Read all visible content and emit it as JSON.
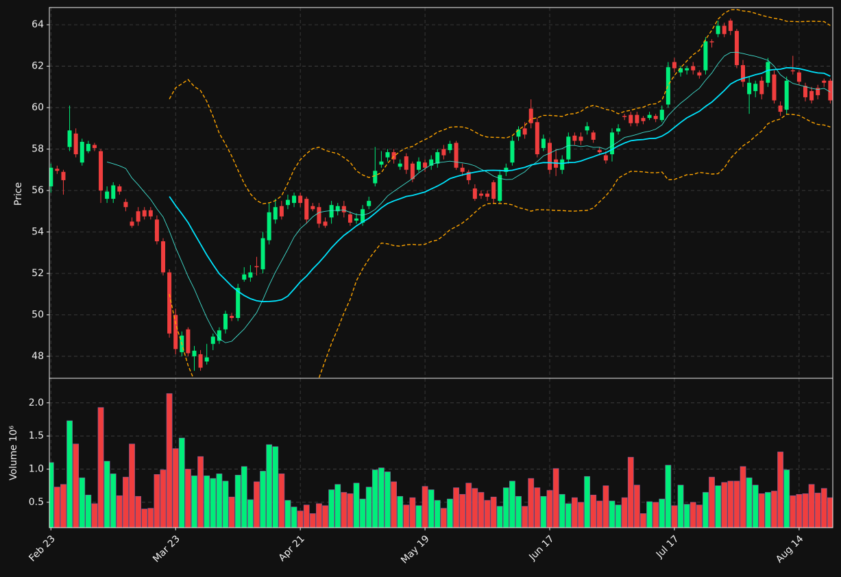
{
  "chart_data": {
    "type": "candlestick",
    "ylabel": "Price",
    "volume_ylabel": "Volume  10⁶",
    "up_color": "#00ee7a",
    "down_color": "#f03e3e",
    "mav": [
      10,
      20
    ],
    "mav_colors": [
      "#40e0d0",
      "#00e5ff"
    ],
    "bollinger": {
      "period": 20,
      "std": 2,
      "color": "#ffa500"
    },
    "grid": true,
    "xlim": [
      -0.25,
      125.4
    ],
    "xticks": [
      {
        "value": 0,
        "label": "Feb 23"
      },
      {
        "value": 20,
        "label": "Mar 23"
      },
      {
        "value": 40,
        "label": "Apr 21"
      },
      {
        "value": 60,
        "label": "May 19"
      },
      {
        "value": 80,
        "label": "Jun 17"
      },
      {
        "value": 100,
        "label": "Jul 17"
      },
      {
        "value": 120,
        "label": "Aug 14"
      }
    ],
    "ylim": [
      46.94,
      64.83
    ],
    "yticks": [
      48,
      50,
      52,
      54,
      56,
      58,
      60,
      62,
      64
    ],
    "volume_ylim": [
      0.117,
      2.37
    ],
    "volume_yticks": [
      0.5,
      {
        "value": 1,
        "label": "1.0"
      },
      1.5,
      {
        "value": 2,
        "label": "2.0"
      }
    ],
    "open": [
      56.2,
      57.05,
      56.9,
      58.1,
      58.75,
      57.35,
      57.9,
      58.2,
      57.9,
      55.6,
      55.6,
      56.2,
      55.45,
      54.5,
      55.0,
      55.05,
      55.05,
      54.6,
      53.55,
      52.05,
      50.0,
      48.2,
      49.3,
      48.0,
      48.1,
      47.75,
      48.6,
      48.75,
      49.3,
      49.95,
      49.85,
      51.7,
      51.8,
      52.35,
      52.2,
      53.6,
      54.6,
      55.25,
      55.3,
      55.4,
      55.75,
      55.6,
      55.25,
      55.2,
      54.5,
      54.7,
      55.0,
      55.25,
      54.85,
      54.55,
      54.45,
      55.25,
      56.35,
      57.25,
      57.6,
      57.85,
      57.15,
      57.65,
      57.3,
      57.0,
      57.35,
      57.2,
      57.3,
      58.0,
      57.95,
      58.3,
      57.1,
      56.9,
      56.1,
      55.85,
      55.85,
      56.4,
      55.5,
      56.9,
      57.35,
      58.6,
      59.0,
      59.95,
      59.3,
      58.05,
      58.3,
      57.5,
      57.0,
      57.5,
      58.65,
      58.6,
      58.9,
      58.8,
      57.95,
      57.7,
      57.75,
      58.85,
      59.6,
      59.65,
      59.65,
      59.5,
      59.5,
      59.6,
      59.4,
      60.15,
      62.2,
      61.7,
      61.8,
      62.0,
      61.7,
      61.8,
      63.2,
      63.55,
      63.95,
      64.2,
      63.7,
      62.05,
      60.65,
      60.8,
      61.3,
      61.2,
      61.6,
      60.1,
      59.9,
      61.8,
      61.7,
      61.05,
      60.8,
      60.95,
      61.3,
      61.3
    ],
    "high": [
      57.3,
      57.2,
      57.0,
      60.1,
      59.0,
      58.5,
      58.4,
      58.3,
      58.0,
      56.2,
      56.4,
      56.3,
      55.6,
      54.7,
      55.2,
      55.2,
      55.2,
      54.8,
      53.7,
      52.2,
      50.3,
      49.2,
      49.4,
      48.5,
      48.3,
      48.6,
      49.1,
      49.4,
      50.2,
      50.1,
      51.5,
      52.3,
      52.4,
      52.8,
      54.0,
      55.4,
      55.6,
      55.5,
      55.8,
      55.9,
      55.9,
      55.7,
      55.4,
      55.4,
      54.7,
      55.5,
      55.4,
      55.5,
      55.0,
      54.9,
      55.3,
      55.7,
      58.1,
      57.9,
      58.0,
      58.0,
      57.5,
      57.8,
      57.4,
      57.6,
      57.5,
      57.7,
      58.0,
      58.2,
      58.4,
      58.4,
      57.3,
      57.0,
      56.3,
      56.0,
      56.0,
      56.5,
      57.0,
      57.3,
      58.6,
      59.1,
      59.3,
      60.4,
      59.5,
      58.7,
      58.5,
      58.0,
      57.7,
      58.8,
      58.8,
      58.8,
      59.3,
      58.9,
      58.1,
      57.9,
      59.0,
      59.2,
      59.7,
      59.8,
      59.8,
      59.6,
      59.8,
      59.7,
      60.1,
      62.2,
      62.4,
      62.0,
      62.0,
      62.2,
      61.8,
      63.4,
      63.3,
      64.2,
      64.1,
      64.3,
      63.8,
      62.3,
      61.5,
      61.3,
      61.5,
      62.4,
      61.8,
      60.3,
      61.5,
      62.5,
      61.8,
      61.2,
      61.0,
      61.1,
      61.4,
      61.4
    ],
    "low": [
      55.9,
      56.8,
      55.8,
      57.9,
      57.6,
      57.2,
      57.8,
      57.9,
      55.4,
      55.4,
      55.4,
      55.8,
      55.0,
      54.2,
      54.3,
      54.6,
      54.6,
      53.4,
      51.9,
      48.9,
      48.1,
      48.0,
      48.0,
      47.3,
      47.3,
      47.6,
      48.3,
      48.6,
      49.1,
      49.7,
      49.7,
      51.6,
      51.6,
      51.9,
      52.0,
      53.4,
      54.4,
      54.6,
      55.1,
      55.2,
      55.2,
      54.4,
      55.0,
      54.2,
      54.2,
      54.4,
      54.8,
      54.7,
      54.3,
      54.4,
      54.3,
      55.1,
      56.2,
      57.1,
      57.4,
      57.3,
      57.0,
      56.8,
      56.4,
      56.9,
      56.9,
      57.0,
      57.1,
      57.5,
      57.8,
      57.0,
      56.7,
      56.3,
      55.5,
      55.6,
      55.5,
      55.4,
      55.4,
      56.7,
      57.2,
      58.4,
      58.5,
      59.0,
      57.6,
      57.9,
      56.8,
      56.7,
      56.8,
      57.3,
      58.2,
      58.2,
      58.7,
      58.3,
      57.7,
      57.3,
      57.4,
      58.7,
      59.4,
      59.1,
      59.1,
      59.2,
      59.4,
      59.3,
      59.3,
      60.0,
      61.7,
      61.5,
      61.6,
      61.6,
      61.4,
      61.6,
      62.9,
      63.4,
      63.4,
      63.5,
      61.9,
      61.0,
      59.7,
      60.5,
      60.4,
      61.0,
      60.2,
      59.6,
      59.7,
      61.6,
      61.1,
      60.3,
      60.2,
      60.4,
      61.0,
      60.2
    ],
    "close": [
      57.1,
      56.95,
      56.5,
      58.9,
      57.75,
      58.35,
      58.25,
      58.05,
      56.0,
      55.95,
      56.25,
      55.95,
      55.2,
      54.3,
      54.5,
      54.75,
      54.75,
      53.55,
      52.05,
      49.1,
      48.35,
      49.0,
      48.15,
      48.27,
      47.45,
      47.95,
      48.95,
      49.25,
      50.05,
      49.85,
      51.3,
      51.95,
      52.05,
      52.3,
      53.7,
      54.95,
      55.2,
      54.75,
      55.55,
      55.75,
      55.4,
      54.6,
      55.1,
      54.4,
      54.3,
      55.3,
      55.25,
      54.95,
      54.45,
      54.65,
      55.1,
      55.5,
      56.95,
      57.4,
      57.85,
      57.5,
      57.3,
      57.0,
      56.55,
      57.4,
      57.1,
      57.5,
      57.85,
      57.7,
      58.25,
      57.1,
      56.9,
      56.5,
      55.6,
      55.75,
      55.7,
      55.6,
      56.75,
      57.1,
      58.4,
      58.95,
      58.7,
      59.25,
      57.75,
      58.5,
      57.0,
      57.1,
      57.5,
      58.6,
      58.4,
      58.4,
      59.1,
      58.45,
      57.85,
      57.45,
      58.8,
      59.0,
      59.55,
      59.25,
      59.25,
      59.35,
      59.65,
      59.45,
      59.9,
      61.95,
      61.9,
      61.9,
      61.9,
      61.8,
      61.55,
      63.2,
      63.15,
      63.95,
      63.55,
      63.7,
      62.05,
      61.25,
      61.2,
      61.15,
      60.65,
      62.2,
      60.35,
      59.8,
      61.3,
      61.75,
      61.25,
      60.5,
      60.35,
      60.6,
      61.2,
      60.35
    ],
    "volume": [
      1.1,
      0.73,
      0.77,
      1.73,
      1.38,
      0.87,
      0.61,
      0.48,
      1.93,
      1.12,
      0.93,
      0.6,
      0.88,
      1.38,
      0.59,
      0.4,
      0.41,
      0.92,
      0.99,
      2.14,
      1.31,
      1.47,
      1.0,
      0.9,
      1.19,
      0.9,
      0.86,
      0.93,
      0.82,
      0.58,
      0.91,
      1.04,
      0.54,
      0.81,
      0.97,
      1.37,
      1.34,
      0.93,
      0.53,
      0.43,
      0.37,
      0.46,
      0.33,
      0.48,
      0.45,
      0.69,
      0.77,
      0.65,
      0.63,
      0.79,
      0.55,
      0.73,
      0.99,
      1.02,
      0.96,
      0.81,
      0.59,
      0.46,
      0.57,
      0.45,
      0.74,
      0.69,
      0.53,
      0.41,
      0.55,
      0.72,
      0.62,
      0.79,
      0.71,
      0.65,
      0.53,
      0.58,
      0.44,
      0.72,
      0.82,
      0.59,
      0.44,
      0.86,
      0.72,
      0.59,
      0.68,
      1.01,
      0.62,
      0.48,
      0.57,
      0.5,
      0.89,
      0.61,
      0.52,
      0.75,
      0.52,
      0.46,
      0.57,
      1.18,
      0.76,
      0.33,
      0.51,
      0.5,
      0.55,
      1.06,
      0.45,
      0.76,
      0.47,
      0.5,
      0.46,
      0.65,
      0.88,
      0.75,
      0.8,
      0.82,
      0.82,
      1.04,
      0.87,
      0.76,
      0.63,
      0.65,
      0.67,
      1.26,
      0.99,
      0.6,
      0.62,
      0.63,
      0.77,
      0.64,
      0.71,
      0.57
    ]
  }
}
